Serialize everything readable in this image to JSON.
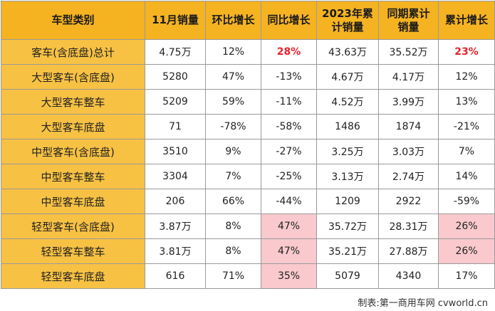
{
  "table": {
    "headers": [
      "车型类别",
      "11月销量",
      "环比增长",
      "同比增长",
      "2023年累\n计销量",
      "同期累计\n销量",
      "累计增长"
    ],
    "rows": [
      {
        "type": "客车(含底盘)总计",
        "nov": "4.75万",
        "mom": "12%",
        "yoy": "28%",
        "ytd": "43.63万",
        "prev": "35.52万",
        "cum": "23%"
      },
      {
        "type": "大型客车(含底盘)",
        "nov": "5280",
        "mom": "47%",
        "yoy": "-13%",
        "ytd": "4.67万",
        "prev": "4.17万",
        "cum": "12%"
      },
      {
        "type": "大型客车整车",
        "nov": "5209",
        "mom": "59%",
        "yoy": "-11%",
        "ytd": "4.52万",
        "prev": "3.99万",
        "cum": "13%"
      },
      {
        "type": "大型客车底盘",
        "nov": "71",
        "mom": "-78%",
        "yoy": "-58%",
        "ytd": "1486",
        "prev": "1874",
        "cum": "-21%"
      },
      {
        "type": "中型客车(含底盘)",
        "nov": "3510",
        "mom": "9%",
        "yoy": "-27%",
        "ytd": "3.25万",
        "prev": "3.03万",
        "cum": "7%"
      },
      {
        "type": "中型客车整车",
        "nov": "3304",
        "mom": "7%",
        "yoy": "-25%",
        "ytd": "3.13万",
        "prev": "2.74万",
        "cum": "14%"
      },
      {
        "type": "中型客车底盘",
        "nov": "206",
        "mom": "66%",
        "yoy": "-44%",
        "ytd": "1209",
        "prev": "2922",
        "cum": "-59%"
      },
      {
        "type": "轻型客车(含底盘)",
        "nov": "3.87万",
        "mom": "8%",
        "yoy": "47%",
        "ytd": "35.72万",
        "prev": "28.31万",
        "cum": "26%"
      },
      {
        "type": "轻型客车整车",
        "nov": "3.81万",
        "mom": "8%",
        "yoy": "47%",
        "ytd": "35.21万",
        "prev": "27.88万",
        "cum": "26%"
      },
      {
        "type": "轻型客车底盘",
        "nov": "616",
        "mom": "71%",
        "yoy": "35%",
        "ytd": "5079",
        "prev": "4340",
        "cum": "17%"
      }
    ]
  },
  "footer": "制表:第一商用车网 cvworld.cn",
  "colors": {
    "header_bg": "#f5b321",
    "type_col_bg": "#f7c143",
    "highlight_red": "#e8222a",
    "highlight_pink": "#f9c9cd"
  }
}
